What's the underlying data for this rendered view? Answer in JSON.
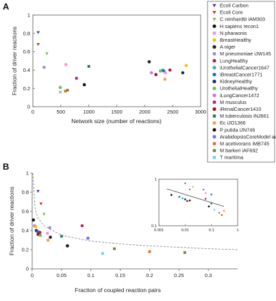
{
  "panel_labels": [
    "A",
    "B"
  ],
  "legend": [
    {
      "name": "Ecoli Carbon",
      "color": "#3b2fd0",
      "marker": "triangle-down"
    },
    {
      "name": "Ecoli Core",
      "color": "#e3202a",
      "marker": "triangle-down"
    },
    {
      "name": "C reinhardtii iAM303",
      "color": "#6cc04a",
      "marker": "triangle-down"
    },
    {
      "name": "H sapiens recon1",
      "color": "#111111",
      "marker": "circle"
    },
    {
      "name": "N pharaonis",
      "color": "#f08fe0",
      "marker": "square"
    },
    {
      "name": "BreastHealthy",
      "color": "#f5c000",
      "marker": "circle"
    },
    {
      "name": "A niger",
      "color": "#1e1e1e",
      "marker": "circle"
    },
    {
      "name": "M pneumoniae iJW145",
      "color": "#8a8ad8",
      "marker": "square"
    },
    {
      "name": "LungHealthy",
      "color": "#b51a3a",
      "marker": "circle"
    },
    {
      "name": "iUrothelialCancer1647",
      "color": "#2bb3b3",
      "marker": "circle"
    },
    {
      "name": "iBreastCancer1771",
      "color": "#2f5fc8",
      "marker": "circle"
    },
    {
      "name": "KidneyHealthy",
      "color": "#0b2a6e",
      "marker": "circle"
    },
    {
      "name": "UrothelialHealthy",
      "color": "#6cc04a",
      "marker": "circle"
    },
    {
      "name": "iLungCancer1472",
      "color": "#e36ad8",
      "marker": "circle"
    },
    {
      "name": "M musculus",
      "color": "#b51a7a",
      "marker": "square"
    },
    {
      "name": "iRenalCancer1410",
      "color": "#a01010",
      "marker": "circle"
    },
    {
      "name": "M tuberculosis iNJ661",
      "color": "#1f7a5a",
      "marker": "square"
    },
    {
      "name": "Ec iJO1366",
      "color": "#f0a050",
      "marker": "circle"
    },
    {
      "name": "P putida iJN746",
      "color": "#111111",
      "marker": "circle"
    },
    {
      "name": "ArabidopsisCoreModel auto",
      "color": "#6f6ff0",
      "marker": "circle"
    },
    {
      "name": "M acetivorans iMB745",
      "color": "#e07020",
      "marker": "square"
    },
    {
      "name": "M barkeri iAF692",
      "color": "#6d8a2a",
      "marker": "square"
    },
    {
      "name": "T maritima",
      "color": "#6fd0e8",
      "marker": "square"
    }
  ],
  "chart_data": [
    {
      "panel": "A",
      "type": "scatter",
      "xlabel": "Network size (number of reactions)",
      "ylabel": "Fraction of driver reactions",
      "xlim": [
        0,
        3000
      ],
      "ylim": [
        0,
        1
      ],
      "xticks": [
        "0",
        "500",
        "1000",
        "1500",
        "2000",
        "2500",
        "3000"
      ],
      "yticks": [
        "0",
        "0.2",
        "0.4",
        "0.6",
        "0.8",
        "1"
      ],
      "points": [
        {
          "series": "Ecoli Carbon",
          "x": 95,
          "y": 0.81
        },
        {
          "series": "Ecoli Core",
          "x": 95,
          "y": 0.68
        },
        {
          "series": "C reinhardtii iAM303",
          "x": 250,
          "y": 0.58
        },
        {
          "series": "M pneumoniae iJW145",
          "x": 200,
          "y": 0.43
        },
        {
          "series": "N pharaonis",
          "x": 590,
          "y": 0.46
        },
        {
          "series": "M musculus",
          "x": 780,
          "y": 0.31
        },
        {
          "series": "M tuberculosis iNJ661",
          "x": 1000,
          "y": 0.44
        },
        {
          "series": "UrothelialHealthy",
          "x": 490,
          "y": 0.21
        },
        {
          "series": "T maritima",
          "x": 490,
          "y": 0.16
        },
        {
          "series": "M acetivorans iMB745",
          "x": 580,
          "y": 0.17
        },
        {
          "series": "M barkeri iAF692",
          "x": 620,
          "y": 0.18
        },
        {
          "series": "P putida iJN746",
          "x": 920,
          "y": 0.24
        },
        {
          "series": "A niger",
          "x": 2080,
          "y": 0.49
        },
        {
          "series": "iLungCancer1472",
          "x": 2120,
          "y": 0.37
        },
        {
          "series": "iRenalCancer1410",
          "x": 2200,
          "y": 0.35
        },
        {
          "series": "UrothelialHealthy",
          "x": 2280,
          "y": 0.39
        },
        {
          "series": "iUrothelialCancer1647",
          "x": 2320,
          "y": 0.4
        },
        {
          "series": "iBreastCancer1771",
          "x": 2340,
          "y": 0.39
        },
        {
          "series": "N pharaonis",
          "x": 2370,
          "y": 0.37
        },
        {
          "series": "LungHealthy",
          "x": 2450,
          "y": 0.4
        },
        {
          "series": "Ec iJO1366",
          "x": 2360,
          "y": 0.3
        },
        {
          "series": "KidneyHealthy",
          "x": 2680,
          "y": 0.37
        },
        {
          "series": "BreastHealthy",
          "x": 2740,
          "y": 0.45
        }
      ]
    },
    {
      "panel": "B",
      "type": "scatter",
      "xlabel": "Fraction of coupled reaction pairs",
      "ylabel": "Fraction of driver reactions",
      "xlim": [
        0,
        0.35
      ],
      "ylim": [
        0,
        1
      ],
      "xticks": [
        "0",
        "0.05",
        "0.1",
        "0.15",
        "0.2",
        "0.25",
        "0.3"
      ],
      "yticks": [
        "0",
        "0.2",
        "0.4",
        "0.6",
        "0.8",
        "1"
      ],
      "fit_curve": {
        "style": "dashed",
        "x": [
          0.001,
          0.005,
          0.01,
          0.02,
          0.05,
          0.1,
          0.15,
          0.2,
          0.25,
          0.3,
          0.35
        ],
        "y": [
          1.0,
          0.62,
          0.53,
          0.45,
          0.35,
          0.29,
          0.26,
          0.24,
          0.225,
          0.21,
          0.2
        ]
      },
      "points": [
        {
          "series": "Ecoli Carbon",
          "x": 0.01,
          "y": 0.81
        },
        {
          "series": "Ecoli Core",
          "x": 0.015,
          "y": 0.68
        },
        {
          "series": "C reinhardtii iAM303",
          "x": 0.02,
          "y": 0.57
        },
        {
          "series": "H sapiens recon1",
          "x": 0.002,
          "y": 0.51
        },
        {
          "series": "iLungCancer1472",
          "x": 0.004,
          "y": 0.45
        },
        {
          "series": "BreastHealthy",
          "x": 0.006,
          "y": 0.44
        },
        {
          "series": "KidneyHealthy",
          "x": 0.007,
          "y": 0.4
        },
        {
          "series": "iBreastCancer1771",
          "x": 0.009,
          "y": 0.39
        },
        {
          "series": "iUrothelialCancer1647",
          "x": 0.012,
          "y": 0.37
        },
        {
          "series": "iRenalCancer1410",
          "x": 0.01,
          "y": 0.36
        },
        {
          "series": "LungHealthy",
          "x": 0.013,
          "y": 0.38
        },
        {
          "series": "N pharaonis",
          "x": 0.026,
          "y": 0.37
        },
        {
          "series": "M pneumoniae iJW145",
          "x": 0.03,
          "y": 0.43
        },
        {
          "series": "UrothelialHealthy",
          "x": 0.014,
          "y": 0.35
        },
        {
          "series": "Ec iJO1366",
          "x": 0.027,
          "y": 0.3
        },
        {
          "series": "A niger",
          "x": 0.031,
          "y": 0.33
        },
        {
          "series": "M tuberculosis iNJ661",
          "x": 0.05,
          "y": 0.34
        },
        {
          "series": "P putida iJN746",
          "x": 0.06,
          "y": 0.24
        },
        {
          "series": "M musculus",
          "x": 0.085,
          "y": 0.45
        },
        {
          "series": "ArabidopsisCoreModel auto",
          "x": 0.095,
          "y": 0.32
        },
        {
          "series": "T maritima",
          "x": 0.12,
          "y": 0.16
        },
        {
          "series": "M barkeri iAF692",
          "x": 0.14,
          "y": 0.21
        },
        {
          "series": "M acetivorans iMB745",
          "x": 0.2,
          "y": 0.18
        },
        {
          "series": "M barkeri iAF692",
          "x": 0.26,
          "y": 0.17
        }
      ],
      "inset": {
        "type": "scatter",
        "xscale": "log",
        "yscale": "log",
        "xlim": [
          0.001,
          1
        ],
        "ylim": [
          0.1,
          1
        ],
        "xticks": [
          "0.001",
          "0.01",
          "0.1",
          "1"
        ],
        "yticks": [
          "0.1",
          "1"
        ],
        "fit_line": {
          "x": [
            0.002,
            0.3
          ],
          "y": [
            0.62,
            0.26
          ]
        },
        "points": [
          {
            "series": "Ecoli Carbon",
            "x": 0.01,
            "y": 0.81
          },
          {
            "series": "C reinhardtii iAM303",
            "x": 0.02,
            "y": 0.68
          },
          {
            "series": "Ecoli Core",
            "x": 0.015,
            "y": 0.6
          },
          {
            "series": "M pneumoniae iJW145",
            "x": 0.05,
            "y": 0.6
          },
          {
            "series": "N pharaonis",
            "x": 0.06,
            "y": 0.5
          },
          {
            "series": "ArabidopsisCoreModel auto",
            "x": 0.1,
            "y": 0.47
          },
          {
            "series": "H sapiens recon1",
            "x": 0.003,
            "y": 0.46
          },
          {
            "series": "iBreastCancer1771",
            "x": 0.006,
            "y": 0.42
          },
          {
            "series": "iUrothelialCancer1647",
            "x": 0.008,
            "y": 0.39
          },
          {
            "series": "KidneyHealthy",
            "x": 0.01,
            "y": 0.37
          },
          {
            "series": "A niger",
            "x": 0.015,
            "y": 0.35
          },
          {
            "series": "iRenalCancer1410",
            "x": 0.012,
            "y": 0.34
          },
          {
            "series": "M musculus",
            "x": 0.06,
            "y": 0.38
          },
          {
            "series": "P putida iJN746",
            "x": 0.08,
            "y": 0.26
          },
          {
            "series": "M tuberculosis iNJ661",
            "x": 0.1,
            "y": 0.3
          },
          {
            "series": "T maritima",
            "x": 0.13,
            "y": 0.22
          },
          {
            "series": "M acetivorans iMB745",
            "x": 0.2,
            "y": 0.19
          },
          {
            "series": "M barkeri iAF692",
            "x": 0.25,
            "y": 0.17
          },
          {
            "series": "Ec iJO1366",
            "x": 0.3,
            "y": 0.21
          }
        ]
      }
    }
  ]
}
